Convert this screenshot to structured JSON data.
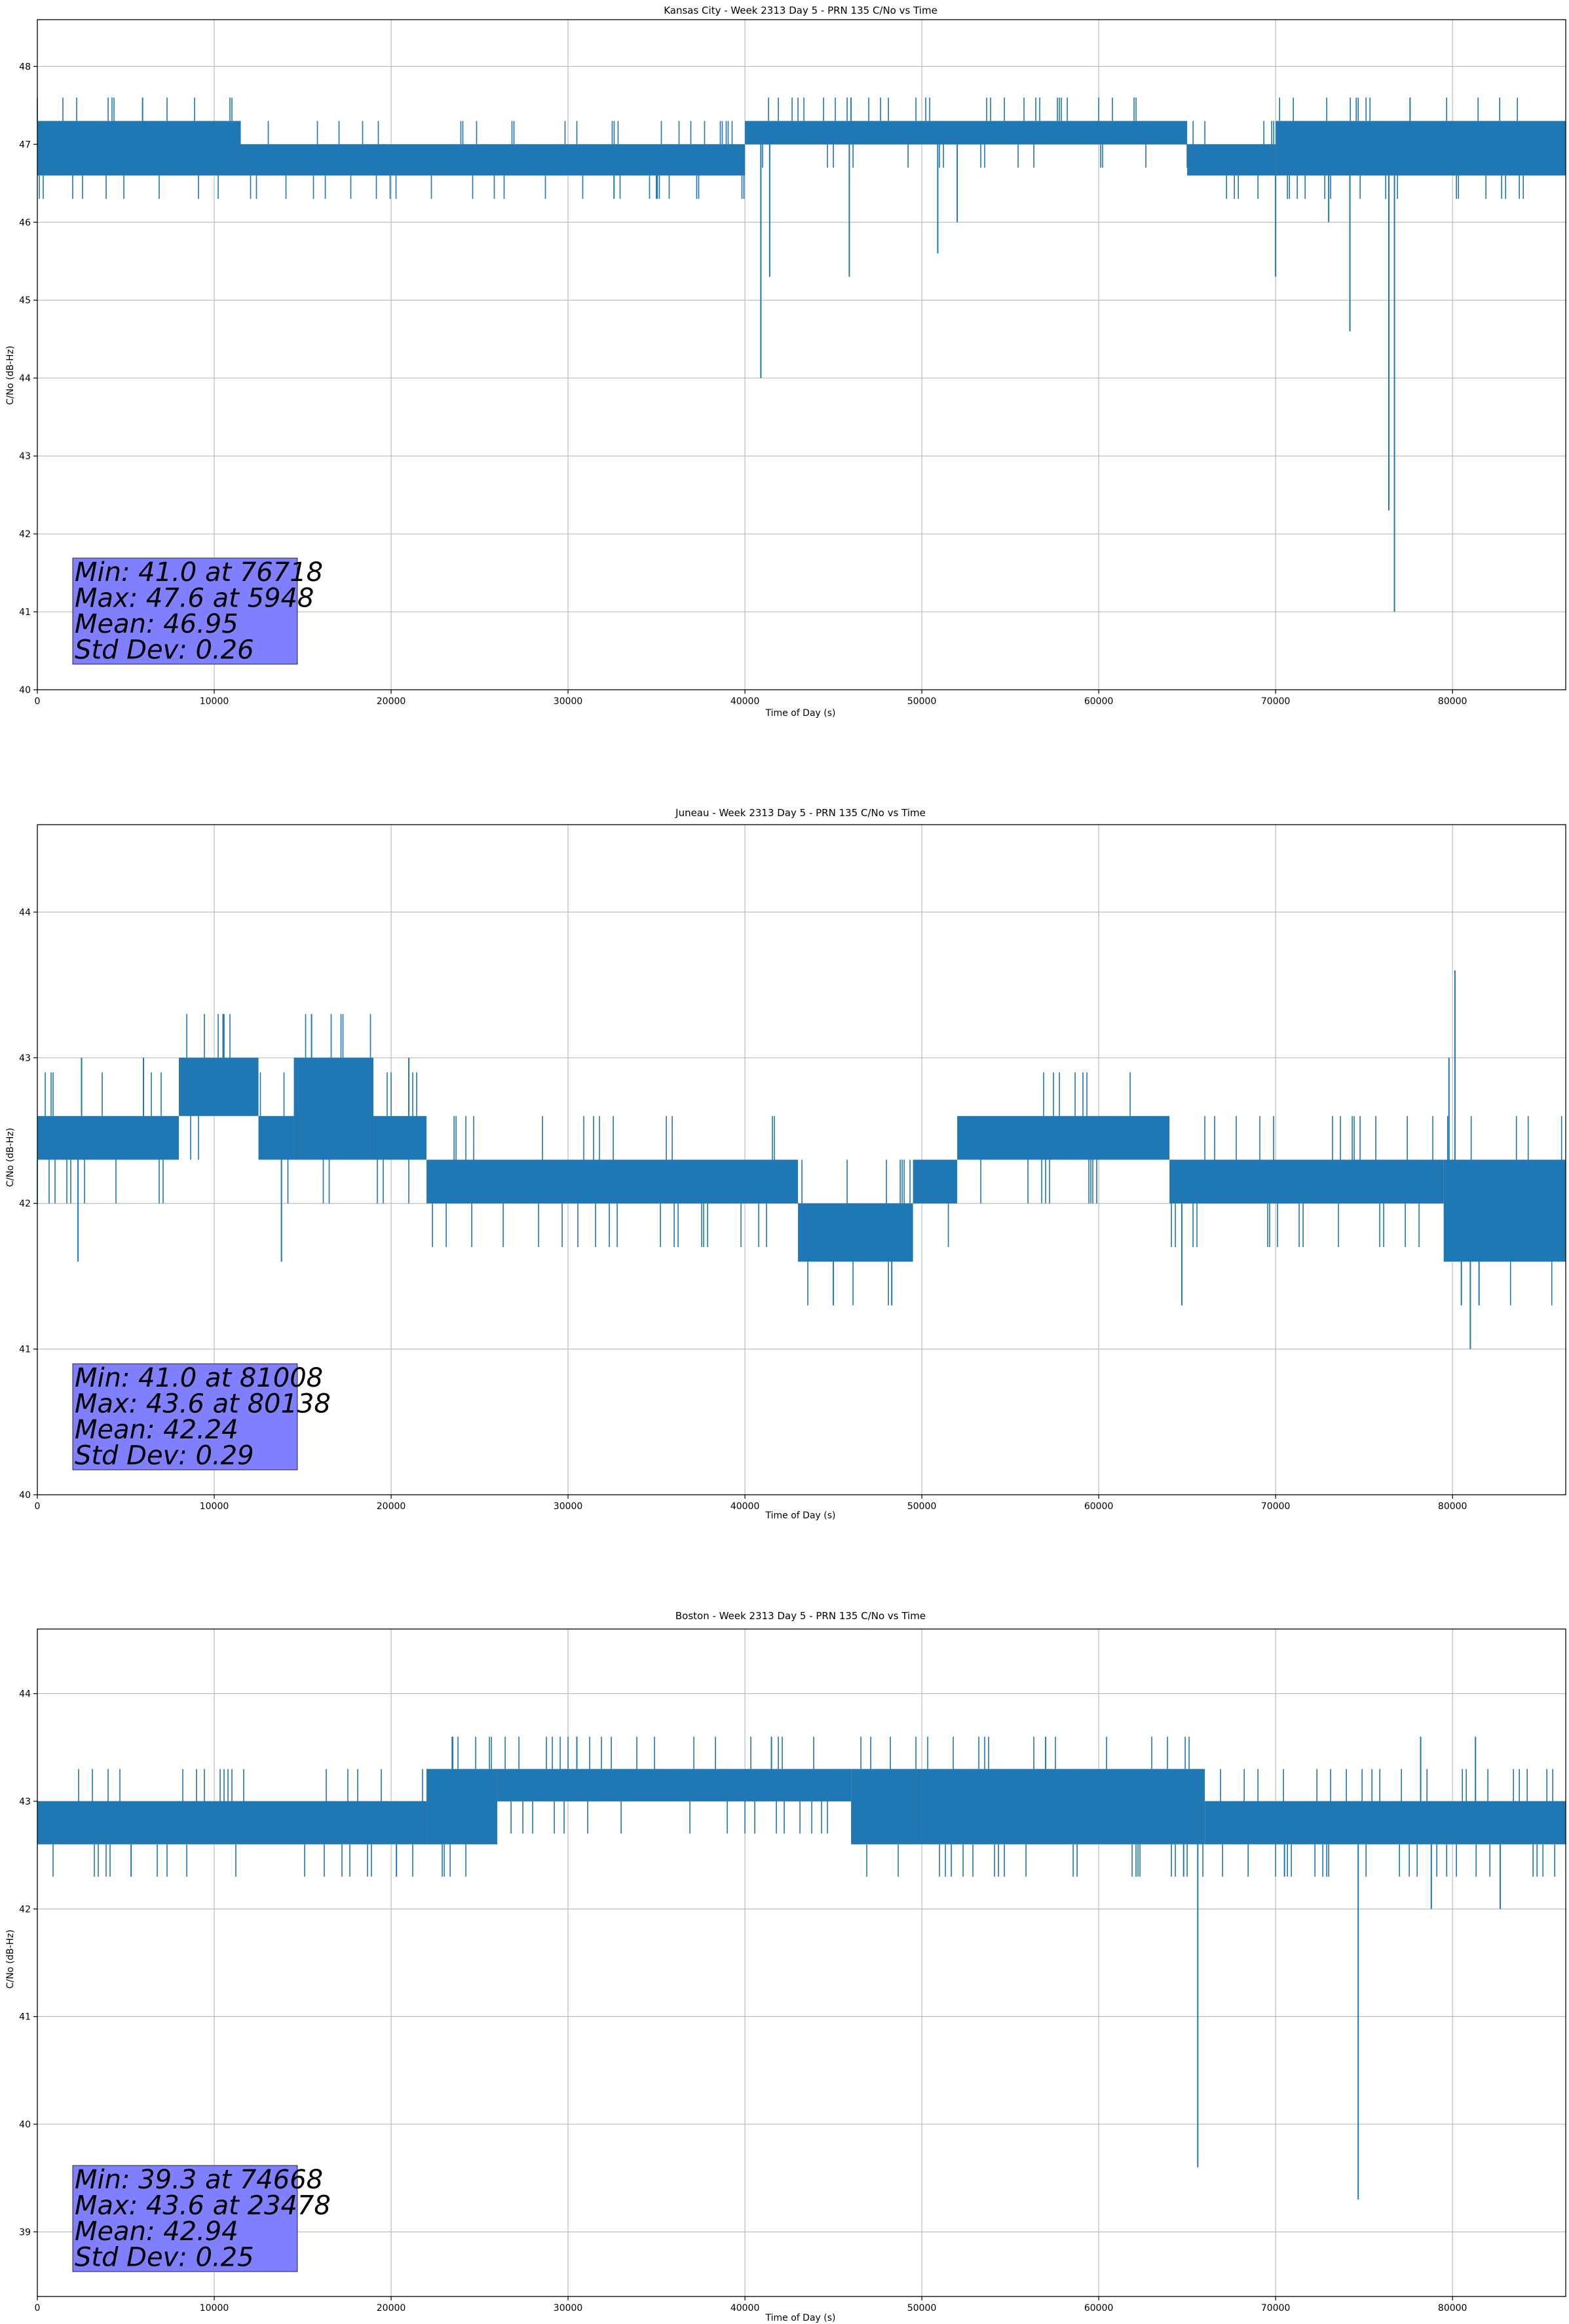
{
  "chart_data": [
    {
      "type": "line",
      "title": "Kansas City - Week 2313 Day 5 - PRN 135 C/No vs Time",
      "xlabel": "Time of Day (s)",
      "ylabel": "C/No (dB-Hz)",
      "xlim": [
        0,
        86400
      ],
      "ylim": [
        40,
        48.6
      ],
      "xticks": [
        0,
        10000,
        20000,
        30000,
        40000,
        50000,
        60000,
        70000,
        80000
      ],
      "yticks": [
        40,
        41,
        42,
        43,
        44,
        45,
        46,
        47,
        48
      ],
      "grid": true,
      "line_color": "#1f77b4",
      "segments": [
        {
          "x_start": 0,
          "x_end": 11500,
          "low": 46.6,
          "high": 47.3
        },
        {
          "x_start": 11500,
          "x_end": 40000,
          "low": 46.6,
          "high": 47.0
        },
        {
          "x_start": 40000,
          "x_end": 65000,
          "low": 47.0,
          "high": 47.3
        },
        {
          "x_start": 65000,
          "x_end": 70000,
          "low": 46.6,
          "high": 47.0
        },
        {
          "x_start": 70000,
          "x_end": 86400,
          "low": 46.6,
          "high": 47.3
        }
      ],
      "spikes": [
        {
          "x": 40900,
          "y": 44.0
        },
        {
          "x": 41400,
          "y": 45.3
        },
        {
          "x": 45900,
          "y": 45.3
        },
        {
          "x": 50900,
          "y": 45.6
        },
        {
          "x": 52000,
          "y": 46.0
        },
        {
          "x": 70000,
          "y": 45.3
        },
        {
          "x": 73000,
          "y": 46.0
        },
        {
          "x": 74200,
          "y": 44.6
        },
        {
          "x": 76400,
          "y": 42.3
        },
        {
          "x": 76718,
          "y": 41.0
        },
        {
          "x": 5948,
          "y": 47.6
        },
        {
          "x": 46000,
          "y": 47.6
        },
        {
          "x": 77600,
          "y": 47.6
        },
        {
          "x": 32600,
          "y": 46.3
        },
        {
          "x": 35000,
          "y": 46.3
        }
      ],
      "stats": {
        "line1": "Min: 41.0 at 76718",
        "line2": "Max: 47.6 at 5948",
        "line3": "Mean: 46.95",
        "line4": "Std Dev: 0.26"
      }
    },
    {
      "type": "line",
      "title": "Juneau - Week 2313 Day 5 - PRN 135 C/No vs Time",
      "xlabel": "Time of Day (s)",
      "ylabel": "C/No (dB-Hz)",
      "xlim": [
        0,
        86400
      ],
      "ylim": [
        40,
        44.6
      ],
      "xticks": [
        0,
        10000,
        20000,
        30000,
        40000,
        50000,
        60000,
        70000,
        80000
      ],
      "yticks": [
        40,
        41,
        42,
        43,
        44
      ],
      "grid": true,
      "line_color": "#1f77b4",
      "segments": [
        {
          "x_start": 0,
          "x_end": 8000,
          "low": 42.3,
          "high": 42.6
        },
        {
          "x_start": 8000,
          "x_end": 12500,
          "low": 42.6,
          "high": 43.0
        },
        {
          "x_start": 12500,
          "x_end": 14500,
          "low": 42.3,
          "high": 42.6
        },
        {
          "x_start": 14500,
          "x_end": 19000,
          "low": 42.3,
          "high": 43.0
        },
        {
          "x_start": 19000,
          "x_end": 22000,
          "low": 42.3,
          "high": 42.6
        },
        {
          "x_start": 22000,
          "x_end": 43000,
          "low": 42.0,
          "high": 42.3
        },
        {
          "x_start": 43000,
          "x_end": 49500,
          "low": 41.6,
          "high": 42.0
        },
        {
          "x_start": 49500,
          "x_end": 52000,
          "low": 42.0,
          "high": 42.3
        },
        {
          "x_start": 52000,
          "x_end": 64000,
          "low": 42.3,
          "high": 42.6
        },
        {
          "x_start": 64000,
          "x_end": 79500,
          "low": 42.0,
          "high": 42.3
        },
        {
          "x_start": 79500,
          "x_end": 86400,
          "low": 41.6,
          "high": 42.3
        }
      ],
      "spikes": [
        {
          "x": 10500,
          "y": 43.3
        },
        {
          "x": 15500,
          "y": 43.3
        },
        {
          "x": 2300,
          "y": 41.6
        },
        {
          "x": 13800,
          "y": 41.6
        },
        {
          "x": 45000,
          "y": 41.3
        },
        {
          "x": 48300,
          "y": 41.3
        },
        {
          "x": 64700,
          "y": 41.3
        },
        {
          "x": 80138,
          "y": 43.6
        },
        {
          "x": 79800,
          "y": 43.0
        },
        {
          "x": 81008,
          "y": 41.0
        },
        {
          "x": 80500,
          "y": 41.3
        },
        {
          "x": 81500,
          "y": 41.3
        },
        {
          "x": 2500,
          "y": 43.0
        },
        {
          "x": 6000,
          "y": 43.0
        },
        {
          "x": 21000,
          "y": 43.0
        }
      ],
      "stats": {
        "line1": "Min: 41.0 at 81008",
        "line2": "Max: 43.6 at 80138",
        "line3": "Mean: 42.24",
        "line4": "Std Dev: 0.29"
      }
    },
    {
      "type": "line",
      "title": "Boston - Week 2313 Day 5 - PRN 135 C/No vs Time",
      "xlabel": "Time of Day (s)",
      "ylabel": "C/No (dB-Hz)",
      "xlim": [
        0,
        86400
      ],
      "ylim": [
        38.4,
        44.6
      ],
      "xticks": [
        0,
        10000,
        20000,
        30000,
        40000,
        50000,
        60000,
        70000,
        80000
      ],
      "yticks": [
        39,
        40,
        41,
        42,
        43,
        44
      ],
      "grid": true,
      "line_color": "#1f77b4",
      "segments": [
        {
          "x_start": 0,
          "x_end": 22000,
          "low": 42.6,
          "high": 43.0
        },
        {
          "x_start": 22000,
          "x_end": 26000,
          "low": 42.6,
          "high": 43.3
        },
        {
          "x_start": 26000,
          "x_end": 46000,
          "low": 43.0,
          "high": 43.3
        },
        {
          "x_start": 46000,
          "x_end": 50000,
          "low": 42.6,
          "high": 43.3
        },
        {
          "x_start": 50000,
          "x_end": 66000,
          "low": 42.6,
          "high": 43.3
        },
        {
          "x_start": 66000,
          "x_end": 86400,
          "low": 42.6,
          "high": 43.0
        }
      ],
      "spikes": [
        {
          "x": 65600,
          "y": 39.6
        },
        {
          "x": 74668,
          "y": 39.3
        },
        {
          "x": 23478,
          "y": 43.6
        },
        {
          "x": 30500,
          "y": 43.6
        },
        {
          "x": 41500,
          "y": 43.6
        },
        {
          "x": 57000,
          "y": 43.6
        },
        {
          "x": 78200,
          "y": 43.6
        },
        {
          "x": 81300,
          "y": 43.6
        },
        {
          "x": 78800,
          "y": 42.0
        },
        {
          "x": 82700,
          "y": 42.0
        },
        {
          "x": 5300,
          "y": 42.3
        },
        {
          "x": 20300,
          "y": 42.3
        },
        {
          "x": 64800,
          "y": 42.3
        },
        {
          "x": 70500,
          "y": 42.3
        }
      ],
      "stats": {
        "line1": "Min: 39.3 at 74668",
        "line2": "Max: 43.6 at 23478",
        "line3": "Mean: 42.94",
        "line4": "Std Dev: 0.25"
      }
    }
  ]
}
